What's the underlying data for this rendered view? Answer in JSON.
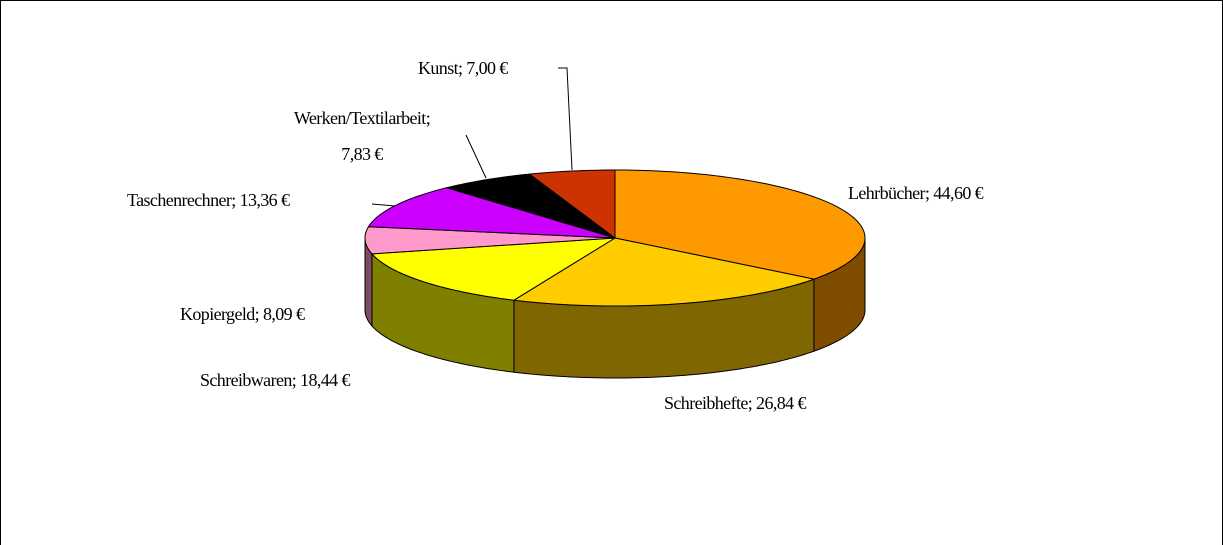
{
  "chart_data": {
    "type": "pie3d",
    "values": [
      44.6,
      26.84,
      18.44,
      8.09,
      13.36,
      7.83,
      7.0
    ],
    "value_labels": [
      "Lehrbücher; 44,60 €",
      "Schreibhefte; 26,84 €",
      "Schreibwaren; 18,44 €",
      "Kopiergeld; 8,09 €",
      "Taschenrechner; 13,36 €",
      "Werken/Textilarbeit;\n7,83 €",
      "Kunst; 7,00 €"
    ],
    "colors": [
      "#FF9900",
      "#FFCC00",
      "#FFFF00",
      "#FF99CC",
      "#CC00FF",
      "#000000",
      "#CC3300"
    ]
  }
}
